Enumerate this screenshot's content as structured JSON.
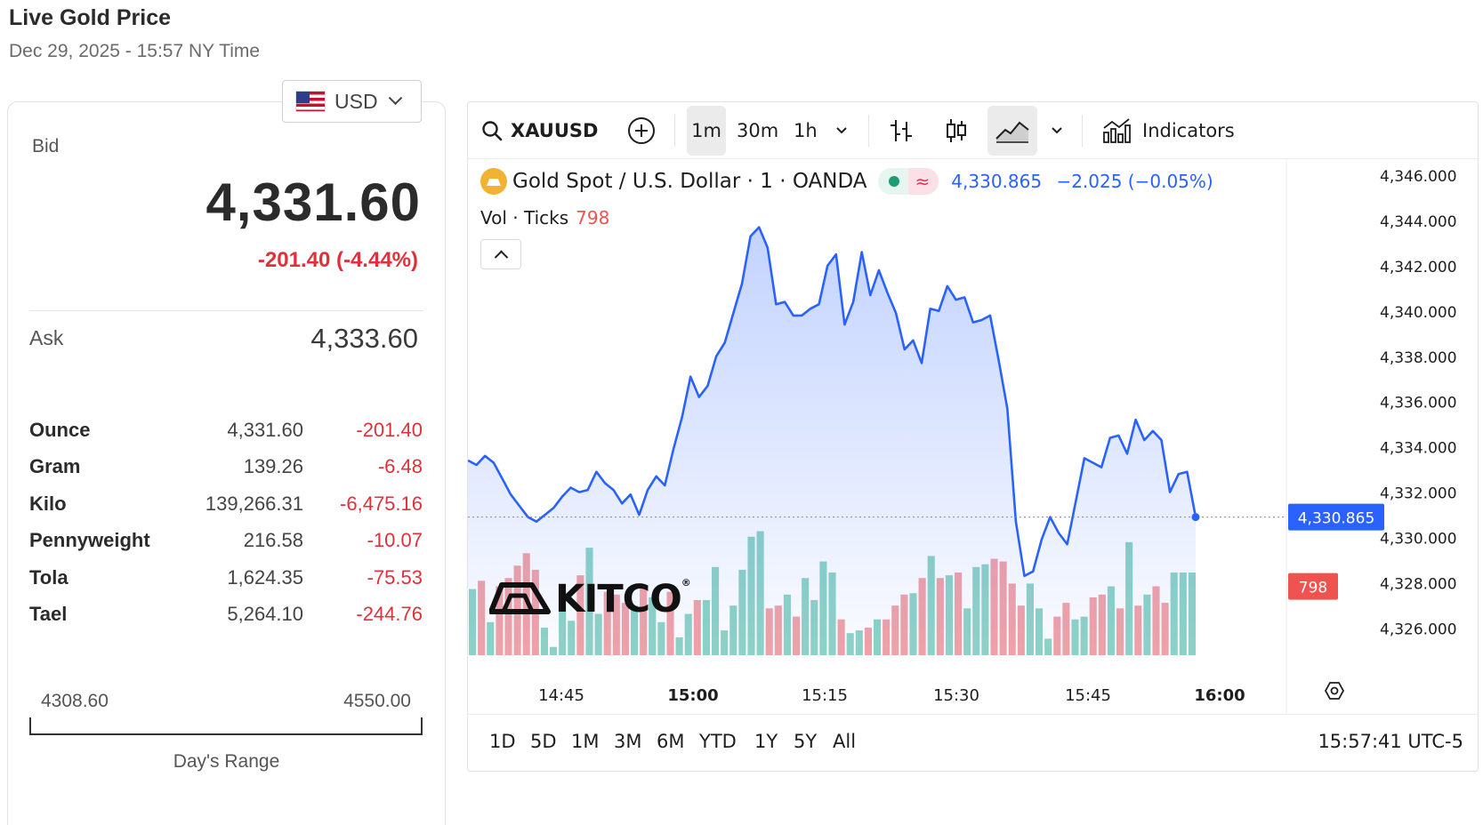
{
  "header": {
    "title": "Live Gold Price",
    "subtitle": "Dec 29, 2025 - 15:57 NY Time"
  },
  "currency": {
    "label": "USD",
    "flag_icon": "us-flag-icon"
  },
  "quote": {
    "bid_label": "Bid",
    "bid": "4,331.60",
    "change": "-201.40 (-4.44%)",
    "ask_label": "Ask",
    "ask": "4,333.60",
    "down_color": "#e0313b"
  },
  "units": [
    {
      "name": "Ounce",
      "price": "4,331.60",
      "change": "-201.40"
    },
    {
      "name": "Gram",
      "price": "139.26",
      "change": "-6.48"
    },
    {
      "name": "Kilo",
      "price": "139,266.31",
      "change": "-6,475.16"
    },
    {
      "name": "Pennyweight",
      "price": "216.58",
      "change": "-10.07"
    },
    {
      "name": "Tola",
      "price": "1,624.35",
      "change": "-75.53"
    },
    {
      "name": "Tael",
      "price": "5,264.10",
      "change": "-244.76"
    }
  ],
  "day_range": {
    "low": "4308.60",
    "high": "4550.00",
    "label": "Day's Range"
  },
  "toolbar": {
    "symbol": "XAUUSD",
    "intervals": [
      "1m",
      "30m",
      "1h"
    ],
    "active_interval": "1m",
    "indicators_label": "Indicators"
  },
  "legend": {
    "title": "Gold Spot / U.S. Dollar · 1 · OANDA",
    "wave": "≈",
    "price": "4,330.865",
    "change": "−2.025 (−0.05%)",
    "vol_label": "Vol · Ticks",
    "vol_value": "798"
  },
  "badges": {
    "price": "4,330.865",
    "volume": "798"
  },
  "range_buttons": [
    "1D",
    "5D",
    "1M",
    "3M",
    "6M",
    "YTD",
    "1Y",
    "5Y",
    "All"
  ],
  "clock": "15:57:41 UTC-5",
  "watermark": {
    "text": "KITCO",
    "reg": "®"
  },
  "chart_data": {
    "type": "line",
    "series": [
      {
        "values": [
          4333.4,
          4333.2,
          4333.6,
          4333.3,
          4332.6,
          4331.9,
          4331.4,
          4330.9,
          4330.7,
          4331.0,
          4331.3,
          4331.8,
          4332.2,
          4332.0,
          4332.1,
          4332.9,
          4332.4,
          4332.1,
          4331.5,
          4331.9,
          4331.0,
          4332.1,
          4332.7,
          4332.3,
          4333.9,
          4335.3,
          4337.1,
          4336.2,
          4336.7,
          4338.0,
          4338.6,
          4339.9,
          4341.2,
          4343.3,
          4343.7,
          4342.8,
          4340.3,
          4340.4,
          4339.8,
          4339.8,
          4340.1,
          4340.3,
          4342.0,
          4342.5,
          4339.4,
          4340.4,
          4342.6,
          4340.7,
          4341.8,
          4340.8,
          4339.9,
          4338.3,
          4338.7,
          4337.7,
          4340.1,
          4340.0,
          4341.1,
          4340.5,
          4340.6,
          4339.5,
          4339.6,
          4339.8,
          4337.8,
          4335.7,
          4330.7,
          4328.3,
          4328.5,
          4329.9,
          4330.9,
          4330.2,
          4329.7,
          4331.6,
          4333.5,
          4333.3,
          4333.1,
          4334.4,
          4334.5,
          4333.7,
          4335.2,
          4334.3,
          4334.7,
          4334.3,
          4332.0,
          4332.8,
          4332.9,
          4330.9
        ]
      }
    ],
    "volume_up": [
      48,
      24,
      20,
      6,
      48,
      25,
      78,
      30,
      36,
      42,
      24,
      13,
      30,
      40,
      64,
      18,
      36,
      62,
      86,
      90,
      44,
      56,
      40,
      68,
      60,
      16,
      18,
      26,
      45,
      72,
      58,
      34,
      64,
      66,
      52,
      34,
      12,
      26,
      28,
      50,
      82,
      44,
      60,
      60,
      60
    ],
    "volume_down": [
      54,
      50,
      56,
      65,
      74,
      62,
      58,
      46,
      44,
      38,
      50,
      46,
      40,
      34,
      36,
      28,
      26,
      20,
      26,
      36,
      44,
      56,
      56,
      60,
      70,
      68,
      52,
      36,
      28,
      38,
      42,
      44,
      34,
      36,
      50,
      38
    ],
    "volume_current": 798,
    "y_ticks": [
      "4,346.000",
      "4,344.000",
      "4,342.000",
      "4,340.000",
      "4,338.000",
      "4,336.000",
      "4,334.000",
      "4,332.000",
      "4,330.000",
      "4,328.000",
      "4,326.000"
    ],
    "x_ticks": [
      "14:45",
      "15:00",
      "15:15",
      "15:30",
      "15:45",
      "16:00"
    ],
    "ylim": [
      4324.8,
      4346.0
    ],
    "line_color": "#2962ff",
    "up_color": "#8fd3c6",
    "down_color": "#f2a3a6"
  }
}
